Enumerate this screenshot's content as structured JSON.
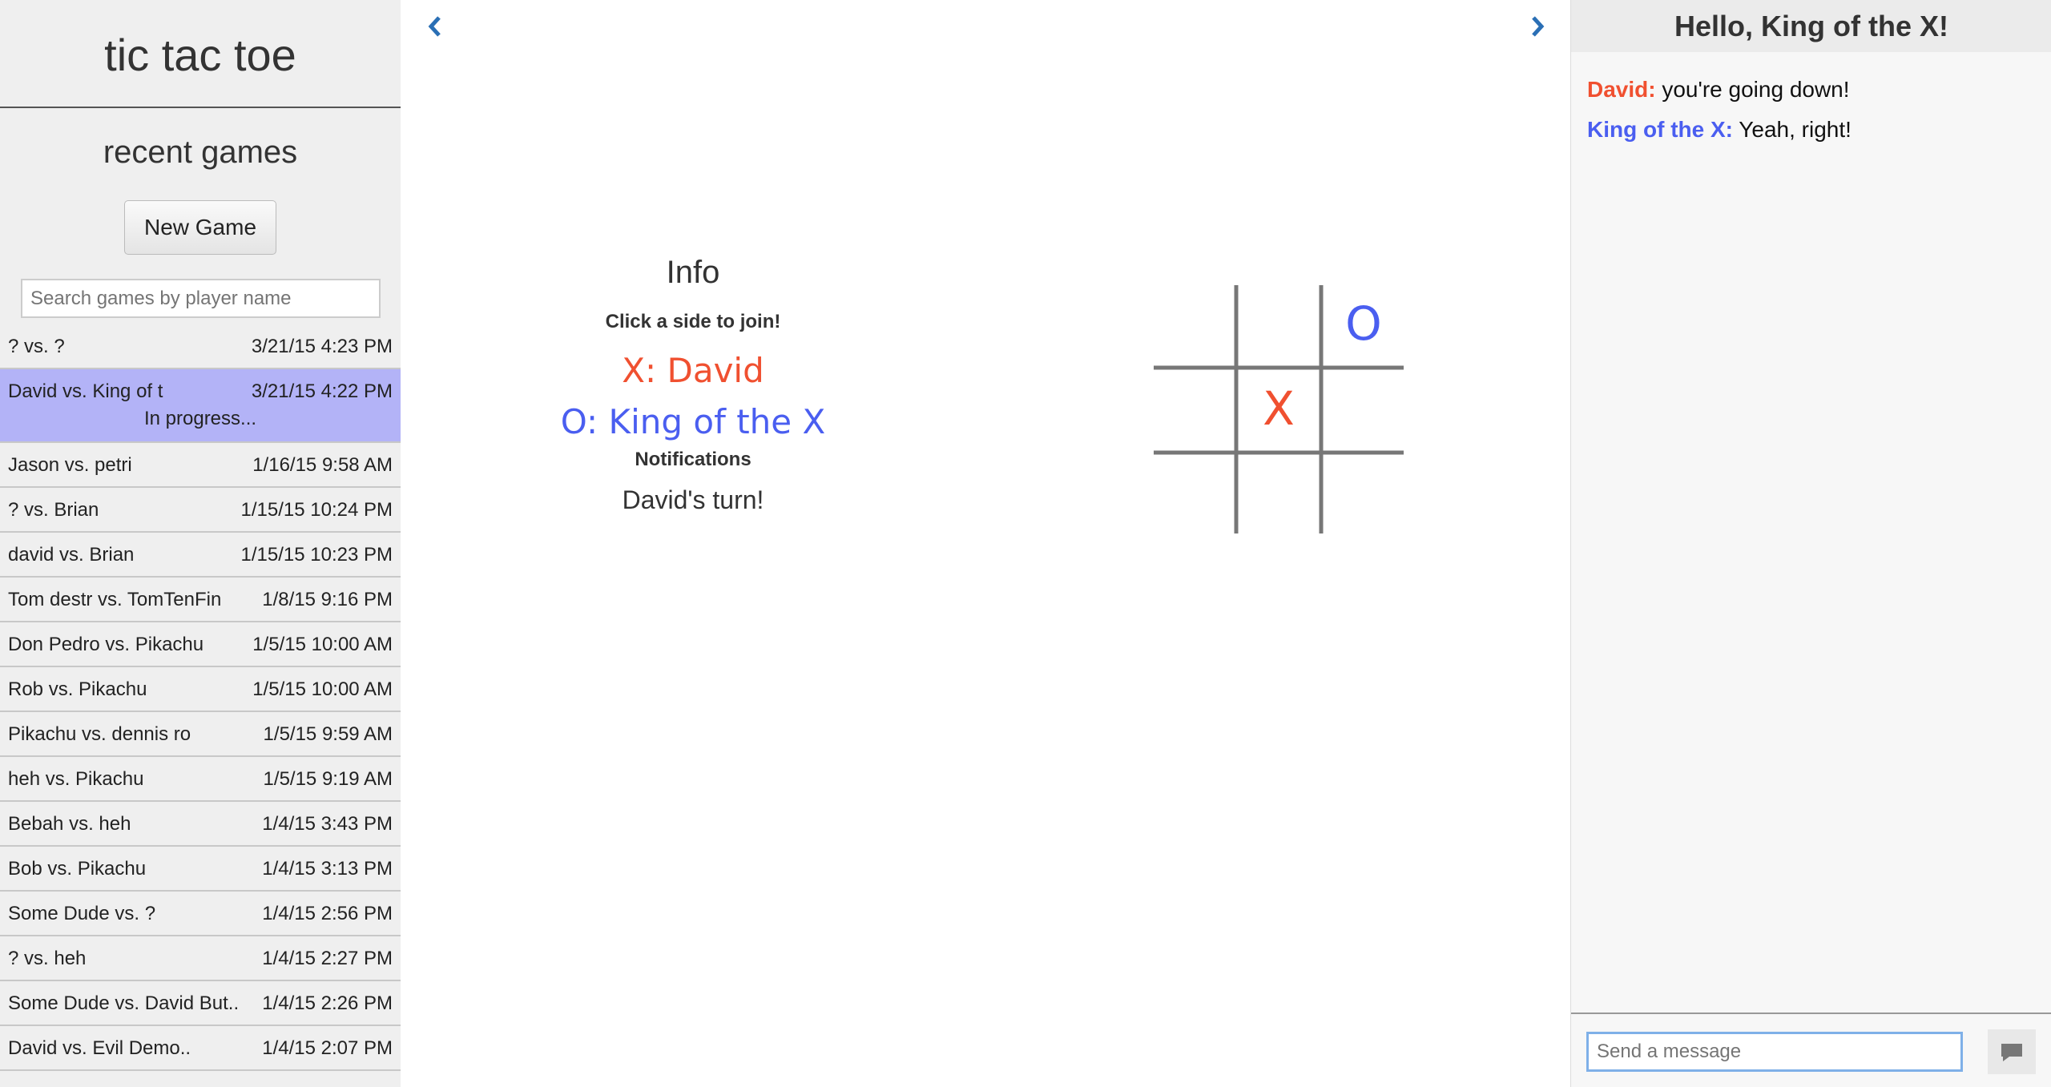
{
  "sidebar": {
    "title": "tic tac toe",
    "section_title": "recent games",
    "new_game_button": "New Game",
    "search_placeholder": "Search games by player name",
    "games": [
      {
        "players": "? vs. ?",
        "date": "3/21/15 4:23 PM"
      },
      {
        "players": "David vs. King of t",
        "date": "3/21/15 4:22 PM",
        "status": "In progress...",
        "selected": true
      },
      {
        "players": "Jason vs. petri",
        "date": "1/16/15 9:58 AM"
      },
      {
        "players": "? vs. Brian",
        "date": "1/15/15 10:24 PM"
      },
      {
        "players": "david vs. Brian",
        "date": "1/15/15 10:23 PM"
      },
      {
        "players": "Tom destr vs. TomTenFin",
        "date": "1/8/15 9:16 PM"
      },
      {
        "players": "Don Pedro vs. Pikachu",
        "date": "1/5/15 10:00 AM"
      },
      {
        "players": "Rob vs. Pikachu",
        "date": "1/5/15 10:00 AM"
      },
      {
        "players": "Pikachu vs. dennis ro",
        "date": "1/5/15 9:59 AM"
      },
      {
        "players": "heh vs. Pikachu",
        "date": "1/5/15 9:19 AM"
      },
      {
        "players": "Bebah vs. heh",
        "date": "1/4/15 3:43 PM"
      },
      {
        "players": "Bob vs. Pikachu",
        "date": "1/4/15 3:13 PM"
      },
      {
        "players": "Some Dude vs. ?",
        "date": "1/4/15 2:56 PM"
      },
      {
        "players": "? vs. heh",
        "date": "1/4/15 2:27 PM"
      },
      {
        "players": "Some Dude vs. David But..",
        "date": "1/4/15 2:26 PM"
      },
      {
        "players": "David vs. Evil Demo..",
        "date": "1/4/15 2:07 PM"
      }
    ]
  },
  "info": {
    "title": "Info",
    "join_prompt": "Click a side to join!",
    "player_x": "X: David",
    "player_o": "O: King of the X",
    "notifications_title": "Notifications",
    "notification": "David's turn!"
  },
  "board": {
    "cells": [
      null,
      null,
      "O",
      null,
      "X",
      null,
      null,
      null,
      null
    ]
  },
  "chat": {
    "greeting": "Hello, King of the X!",
    "messages": [
      {
        "sender": "David:",
        "text": "you're going down!",
        "side": "X"
      },
      {
        "sender": "King of the X:",
        "text": "Yeah, right!",
        "side": "O"
      }
    ],
    "input_placeholder": "Send a message"
  }
}
